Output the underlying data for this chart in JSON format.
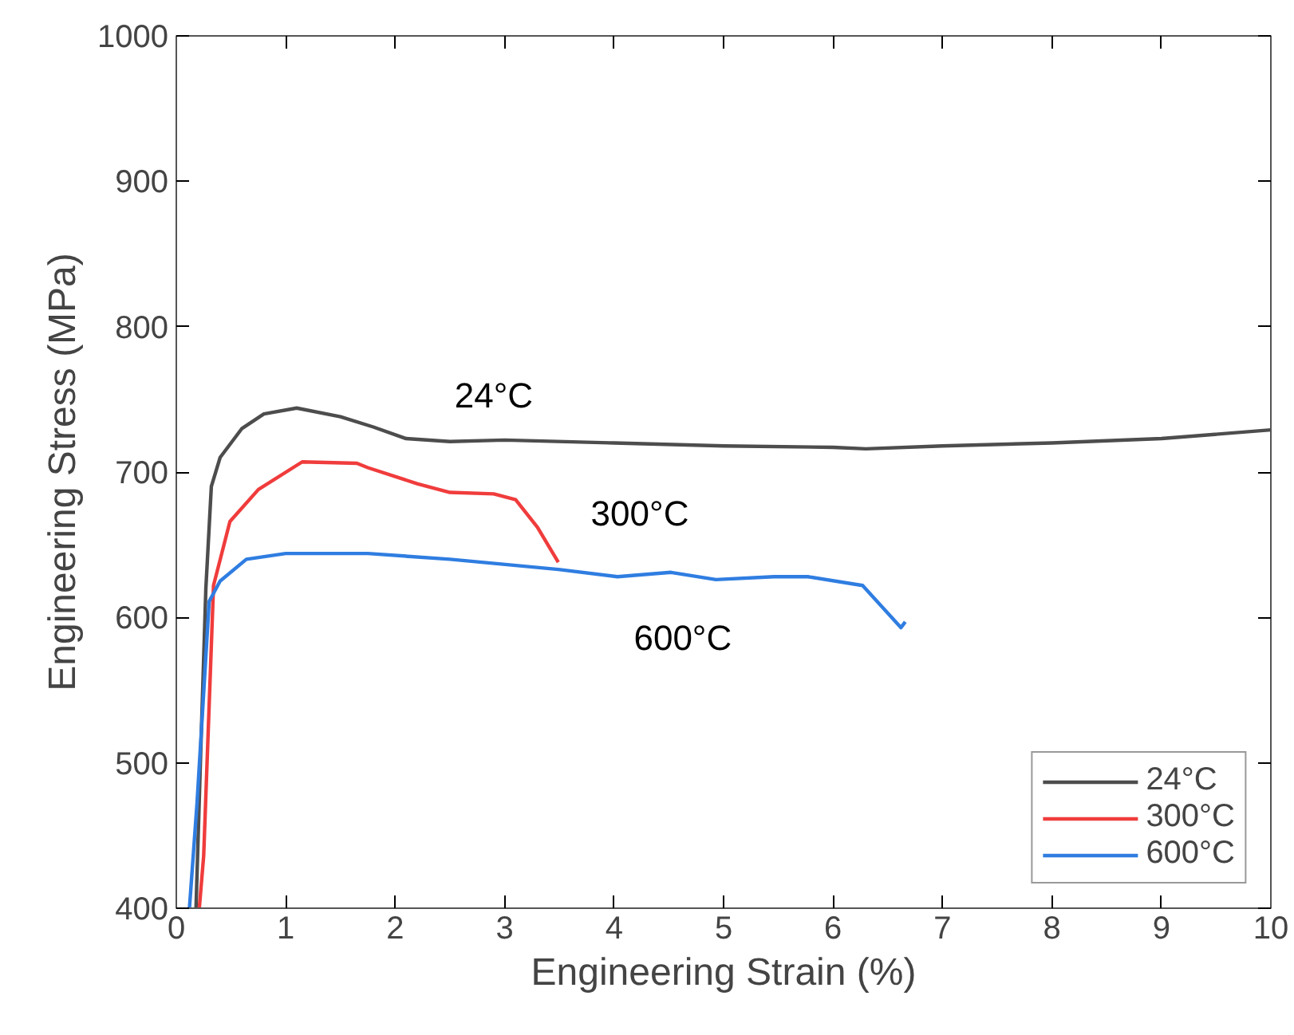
{
  "chart_data": {
    "type": "line",
    "xlabel": "Engineering Strain (%)",
    "ylabel": "Engineering Stress (MPa)",
    "xlim": [
      0,
      10
    ],
    "ylim": [
      400,
      1000
    ],
    "xticks": [
      0,
      1,
      2,
      3,
      4,
      5,
      6,
      7,
      8,
      9,
      10
    ],
    "yticks": [
      400,
      500,
      600,
      700,
      800,
      900,
      1000
    ],
    "grid": false,
    "legend": "bottom right",
    "marker": "none",
    "line_style": "solid",
    "series": [
      {
        "name": "24°C",
        "color": "#4d4d4d",
        "x": [
          0.18,
          0.22,
          0.27,
          0.32,
          0.4,
          0.6,
          0.8,
          1.1,
          1.5,
          1.8,
          2.1,
          2.5,
          3,
          4,
          5,
          6,
          6.3,
          7,
          8,
          9,
          10
        ],
        "values": [
          400,
          500,
          620,
          690,
          710,
          730,
          740,
          744,
          738,
          731,
          723,
          721,
          722,
          720,
          718,
          717,
          716,
          718,
          720,
          723,
          729
        ]
      },
      {
        "name": "300°C",
        "color": "#f03c3c",
        "x": [
          0.21,
          0.25,
          0.34,
          0.49,
          0.75,
          1.15,
          1.65,
          1.75,
          2.2,
          2.5,
          2.9,
          3.1,
          3.3,
          3.49
        ],
        "values": [
          400,
          436,
          622,
          666,
          688,
          707,
          706,
          703,
          692,
          686,
          685,
          681,
          662,
          638
        ]
      },
      {
        "name": "600°C",
        "color": "#2f7de1",
        "x": [
          0.12,
          0.19,
          0.3,
          0.4,
          0.64,
          1.0,
          1.75,
          2.5,
          3.49,
          4.03,
          4.52,
          4.93,
          5.46,
          5.77,
          6.27,
          6.62,
          6.66
        ],
        "values": [
          400,
          473,
          611,
          625,
          640,
          644,
          644,
          640,
          633,
          628,
          631,
          626,
          628,
          628,
          622,
          593,
          597
        ]
      }
    ],
    "annotations": [
      {
        "text": "24°C",
        "x": 2.9,
        "y": 722
      },
      {
        "text": "300°C",
        "x": 3.35,
        "y": 668
      },
      {
        "text": "600°C",
        "x": 4.7,
        "y": 630
      }
    ]
  }
}
